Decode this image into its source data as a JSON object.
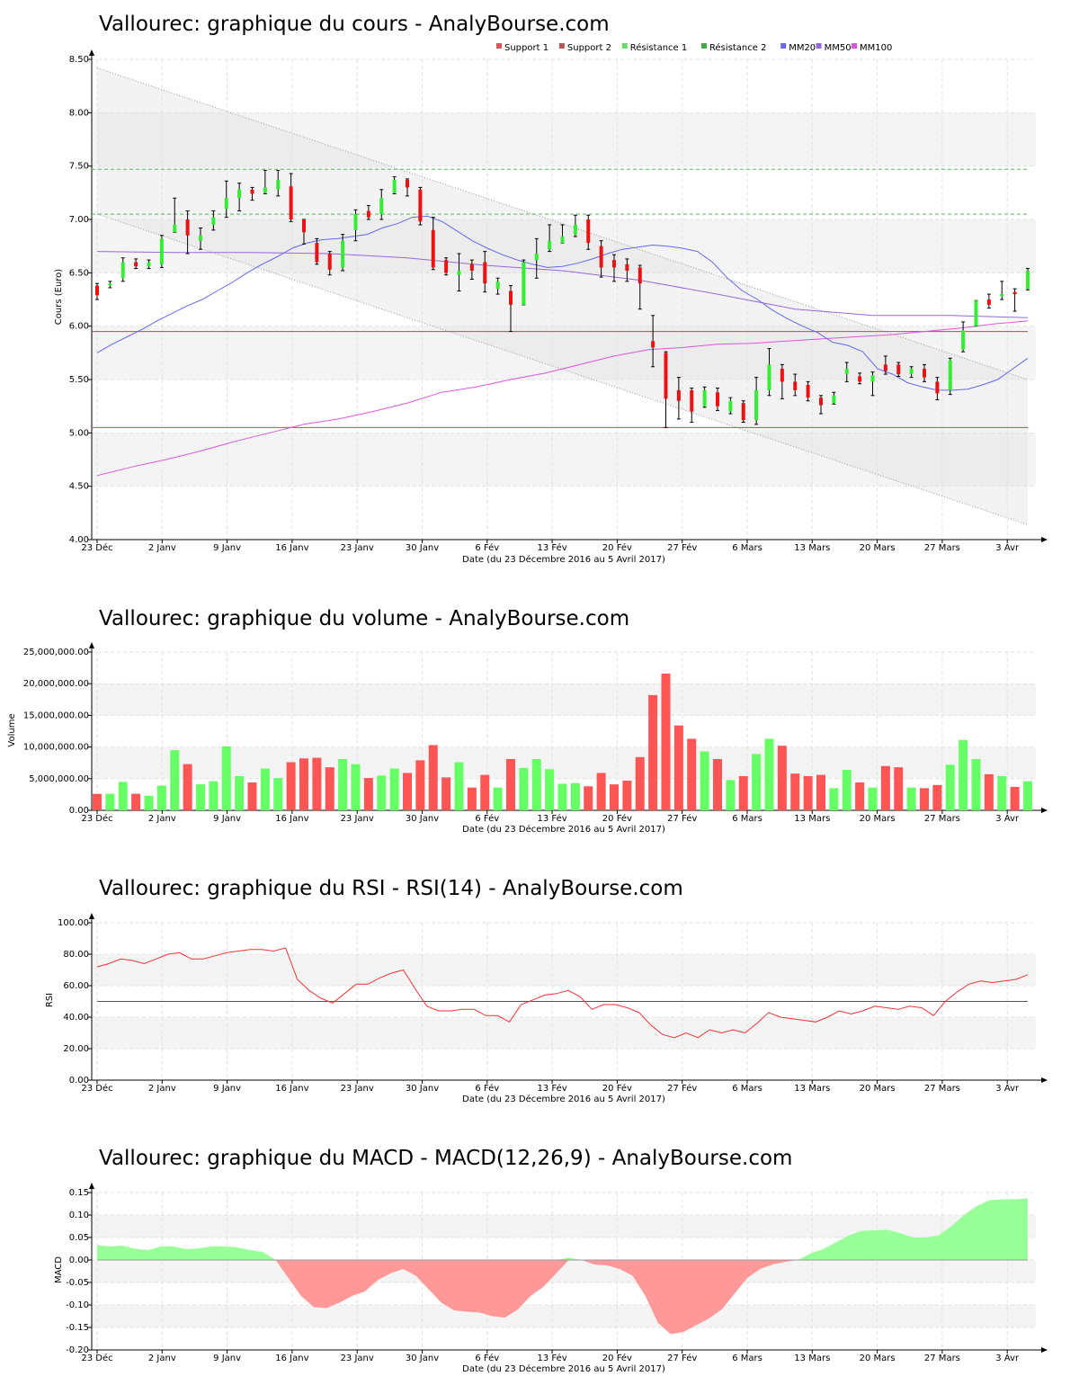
{
  "page": {
    "x_label": "Date (du 23 Décembre 2016 au 5 Avril 2017)",
    "x_ticks": [
      "23 Déc",
      "2 Janv",
      "9 Janv",
      "16 Janv",
      "23 Janv",
      "30 Janv",
      "6 Fév",
      "13 Fév",
      "20 Fév",
      "27 Fév",
      "6 Mars",
      "13 Mars",
      "20 Mars",
      "27 Mars",
      "3 Avr"
    ]
  },
  "colors": {
    "up": "#33ee33",
    "down": "#ee1111",
    "vol_up": "#66ff66",
    "vol_down": "#ff5555",
    "mm20": "#6666ee",
    "mm50": "#9966dd",
    "mm100": "#dd55dd",
    "support": "#cc4444",
    "resistance": "#55bb55",
    "rsi": "#ee3333",
    "macd_pos": "#99ff99",
    "macd_neg": "#ff9999"
  },
  "chart_data": [
    {
      "id": "price",
      "type": "candlestick",
      "title": "Vallourec: graphique du cours - AnalyBourse.com",
      "ylabel": "Cours (Euro)",
      "ylim": [
        4.0,
        8.5
      ],
      "yticks": [
        "4.00",
        "4.50",
        "5.00",
        "5.50",
        "6.00",
        "6.50",
        "7.00",
        "7.50",
        "8.00",
        "8.50"
      ],
      "legend": [
        {
          "label": "Support 1",
          "color": "#dd5555"
        },
        {
          "label": "Support 2",
          "color": "#bb5555"
        },
        {
          "label": "Résistance 1",
          "color": "#66dd66"
        },
        {
          "label": "Résistance 2",
          "color": "#44aa44"
        },
        {
          "label": "MM20",
          "color": "#6666ee"
        },
        {
          "label": "MM50",
          "color": "#9966dd"
        },
        {
          "label": "MM100",
          "color": "#dd55dd"
        }
      ],
      "levels": {
        "support1": 5.95,
        "support2": 5.05,
        "resistance1": 7.05,
        "resistance2": 7.47
      },
      "candles": [
        [
          6.38,
          6.29,
          6.4,
          6.25
        ],
        [
          6.38,
          6.4,
          6.42,
          6.36
        ],
        [
          6.45,
          6.6,
          6.64,
          6.42
        ],
        [
          6.6,
          6.56,
          6.63,
          6.54
        ],
        [
          6.56,
          6.6,
          6.62,
          6.54
        ],
        [
          6.58,
          6.82,
          6.85,
          6.55
        ],
        [
          6.88,
          6.95,
          7.2,
          6.88
        ],
        [
          7.0,
          6.85,
          7.08,
          6.68
        ],
        [
          6.8,
          6.85,
          6.92,
          6.72
        ],
        [
          6.95,
          7.02,
          7.08,
          6.9
        ],
        [
          7.1,
          7.2,
          7.36,
          7.02
        ],
        [
          7.2,
          7.28,
          7.34,
          7.08
        ],
        [
          7.28,
          7.24,
          7.3,
          7.18
        ],
        [
          7.25,
          7.3,
          7.46,
          7.24
        ],
        [
          7.28,
          7.37,
          7.46,
          7.22
        ],
        [
          7.31,
          7.0,
          7.43,
          6.98
        ],
        [
          7.0,
          6.88,
          7.0,
          6.77
        ],
        [
          6.78,
          6.6,
          6.82,
          6.58
        ],
        [
          6.68,
          6.53,
          6.7,
          6.48
        ],
        [
          6.55,
          6.8,
          6.86,
          6.52
        ],
        [
          6.9,
          7.05,
          7.09,
          6.8
        ],
        [
          7.08,
          7.02,
          7.13,
          7.0
        ],
        [
          7.05,
          7.2,
          7.28,
          7.0
        ],
        [
          7.25,
          7.37,
          7.4,
          7.24
        ],
        [
          7.37,
          7.3,
          7.38,
          7.22
        ],
        [
          7.28,
          6.98,
          7.3,
          6.95
        ],
        [
          6.9,
          6.55,
          7.02,
          6.53
        ],
        [
          6.62,
          6.5,
          6.64,
          6.48
        ],
        [
          6.48,
          6.52,
          6.68,
          6.33
        ],
        [
          6.58,
          6.52,
          6.62,
          6.44
        ],
        [
          6.6,
          6.4,
          6.7,
          6.32
        ],
        [
          6.35,
          6.42,
          6.45,
          6.3
        ],
        [
          6.33,
          6.2,
          6.38,
          5.95
        ],
        [
          6.2,
          6.6,
          6.62,
          6.2
        ],
        [
          6.62,
          6.68,
          6.82,
          6.45
        ],
        [
          6.72,
          6.8,
          6.95,
          6.7
        ],
        [
          6.78,
          6.84,
          6.95,
          6.78
        ],
        [
          6.86,
          6.95,
          7.04,
          6.84
        ],
        [
          7.0,
          6.78,
          7.04,
          6.72
        ],
        [
          6.75,
          6.55,
          6.8,
          6.46
        ],
        [
          6.62,
          6.55,
          6.67,
          6.42
        ],
        [
          6.58,
          6.52,
          6.63,
          6.42
        ],
        [
          6.55,
          6.4,
          6.57,
          6.16
        ],
        [
          5.86,
          5.8,
          6.1,
          5.62
        ],
        [
          5.75,
          5.32,
          5.76,
          5.05
        ],
        [
          5.4,
          5.3,
          5.52,
          5.13
        ],
        [
          5.4,
          5.2,
          5.42,
          5.1
        ],
        [
          5.25,
          5.4,
          5.43,
          5.24
        ],
        [
          5.38,
          5.25,
          5.42,
          5.21
        ],
        [
          5.2,
          5.3,
          5.33,
          5.18
        ],
        [
          5.28,
          5.12,
          5.3,
          5.1
        ],
        [
          5.12,
          5.4,
          5.52,
          5.08
        ],
        [
          5.4,
          5.64,
          5.79,
          5.35
        ],
        [
          5.6,
          5.48,
          5.64,
          5.32
        ],
        [
          5.48,
          5.4,
          5.55,
          5.35
        ],
        [
          5.45,
          5.33,
          5.48,
          5.3
        ],
        [
          5.33,
          5.26,
          5.35,
          5.18
        ],
        [
          5.28,
          5.35,
          5.38,
          5.27
        ],
        [
          5.55,
          5.6,
          5.66,
          5.48
        ],
        [
          5.53,
          5.48,
          5.56,
          5.46
        ],
        [
          5.48,
          5.54,
          5.57,
          5.35
        ],
        [
          5.64,
          5.58,
          5.72,
          5.55
        ],
        [
          5.64,
          5.55,
          5.66,
          5.53
        ],
        [
          5.55,
          5.6,
          5.62,
          5.52
        ],
        [
          5.6,
          5.52,
          5.64,
          5.48
        ],
        [
          5.48,
          5.37,
          5.52,
          5.31
        ],
        [
          5.4,
          5.68,
          5.7,
          5.36
        ],
        [
          5.78,
          5.96,
          6.04,
          5.76
        ],
        [
          6.0,
          6.24,
          6.24,
          6.0
        ],
        [
          6.25,
          6.2,
          6.3,
          6.17
        ],
        [
          6.28,
          6.3,
          6.42,
          6.25
        ],
        [
          6.32,
          6.3,
          6.35,
          6.14
        ],
        [
          6.35,
          6.52,
          6.54,
          6.34
        ]
      ],
      "mm20": [
        5.75,
        5.83,
        5.9,
        5.97,
        6.05,
        6.12,
        6.19,
        6.25,
        6.33,
        6.41,
        6.5,
        6.58,
        6.65,
        6.73,
        6.78,
        6.81,
        6.82,
        6.84,
        6.86,
        6.92,
        6.96,
        7.02,
        7.03,
        6.98,
        6.89,
        6.8,
        6.73,
        6.67,
        6.62,
        6.58,
        6.55,
        6.56,
        6.59,
        6.63,
        6.68,
        6.72,
        6.74,
        6.76,
        6.75,
        6.73,
        6.7,
        6.6,
        6.45,
        6.33,
        6.25,
        6.15,
        6.07,
        6.0,
        5.94,
        5.85,
        5.82,
        5.76,
        5.6,
        5.55,
        5.47,
        5.43,
        5.4,
        5.4,
        5.41,
        5.45,
        5.5,
        5.6,
        5.7
      ],
      "mm50": [
        6.7,
        6.69,
        6.69,
        6.68,
        6.64,
        6.57,
        6.52,
        6.43,
        6.3,
        6.16,
        6.1,
        6.1,
        6.08
      ],
      "mm100": [
        4.6,
        4.68,
        4.75,
        4.83,
        4.92,
        5.0,
        5.08,
        5.13,
        5.2,
        5.28,
        5.38,
        5.43,
        5.5,
        5.56,
        5.64,
        5.72,
        5.78,
        5.8,
        5.83,
        5.84,
        5.86,
        5.88,
        5.9,
        5.92,
        5.95,
        5.98,
        6.02,
        6.05
      ]
    },
    {
      "id": "volume",
      "type": "bar",
      "title": "Vallourec: graphique du volume - AnalyBourse.com",
      "ylabel": "Volume",
      "ylim": [
        0,
        25000000
      ],
      "yticks": [
        "0.00",
        "5,000,000.00",
        "10,000,000.00",
        "15,000,000.00",
        "20,000,000.00",
        "25,000,000.00"
      ],
      "values": [
        2600000,
        2600000,
        4500000,
        2600000,
        2300000,
        3900000,
        9500000,
        7300000,
        4100000,
        4600000,
        10100000,
        5400000,
        4400000,
        6600000,
        5100000,
        7600000,
        8200000,
        8300000,
        6800000,
        8100000,
        7300000,
        5100000,
        5500000,
        6600000,
        5900000,
        7900000,
        10300000,
        5200000,
        7600000,
        3600000,
        5600000,
        3600000,
        8100000,
        6700000,
        8100000,
        6500000,
        4200000,
        4300000,
        3800000,
        5900000,
        4100000,
        4700000,
        8400000,
        18200000,
        21600000,
        13400000,
        11300000,
        9300000,
        8100000,
        4800000,
        5400000,
        8900000,
        11300000,
        10200000,
        5800000,
        5400000,
        5600000,
        3500000,
        6400000,
        4400000,
        3600000,
        7000000,
        6800000,
        3600000,
        3500000,
        4000000,
        7200000,
        11100000,
        8100000,
        5700000,
        5400000,
        3700000,
        4600000
      ]
    },
    {
      "id": "rsi",
      "type": "line",
      "title": "Vallourec: graphique du RSI - RSI(14) - AnalyBourse.com",
      "ylabel": "RSI",
      "ylim": [
        0,
        100
      ],
      "yticks": [
        "0.00",
        "20.00",
        "40.00",
        "60.00",
        "80.00",
        "100.00"
      ],
      "reference": 50,
      "values": [
        72,
        74,
        77,
        76,
        74,
        77,
        80,
        81,
        77,
        77,
        79,
        81,
        82,
        83,
        83,
        82,
        84,
        64,
        57,
        52,
        49,
        55,
        61,
        61,
        65,
        68,
        70,
        58,
        47,
        44,
        44,
        45,
        45,
        41,
        41,
        37,
        48,
        51,
        54,
        55,
        57,
        53,
        45,
        48,
        48,
        46,
        43,
        35,
        29,
        27,
        30,
        27,
        32,
        30,
        32,
        30,
        36,
        43,
        40,
        39,
        38,
        37,
        40,
        44,
        42,
        44,
        47,
        46,
        45,
        47,
        46,
        41,
        50,
        56,
        61,
        63,
        62,
        63,
        64,
        67
      ]
    },
    {
      "id": "macd",
      "type": "area",
      "title": "Vallourec: graphique du MACD - MACD(12,26,9) - AnalyBourse.com",
      "ylabel": "MACD",
      "ylim": [
        -0.2,
        0.15
      ],
      "yticks": [
        "-0.20",
        "-0.15",
        "-0.10",
        "-0.05",
        "0.00",
        "0.05",
        "0.10",
        "0.15"
      ],
      "values": [
        0.033,
        0.03,
        0.032,
        0.025,
        0.022,
        0.03,
        0.03,
        0.024,
        0.026,
        0.03,
        0.03,
        0.028,
        0.022,
        0.018,
        0.0,
        -0.04,
        -0.08,
        -0.105,
        -0.107,
        -0.095,
        -0.08,
        -0.07,
        -0.045,
        -0.03,
        -0.02,
        -0.035,
        -0.065,
        -0.095,
        -0.112,
        -0.115,
        -0.117,
        -0.125,
        -0.128,
        -0.11,
        -0.08,
        -0.06,
        -0.03,
        0.005,
        0.0,
        -0.01,
        -0.012,
        -0.02,
        -0.035,
        -0.08,
        -0.14,
        -0.165,
        -0.16,
        -0.145,
        -0.13,
        -0.11,
        -0.075,
        -0.04,
        -0.02,
        -0.01,
        -0.004,
        0.0,
        0.015,
        0.025,
        0.04,
        0.055,
        0.065,
        0.066,
        0.067,
        0.06,
        0.05,
        0.05,
        0.055,
        0.075,
        0.1,
        0.12,
        0.133,
        0.135,
        0.135,
        0.137
      ]
    }
  ]
}
